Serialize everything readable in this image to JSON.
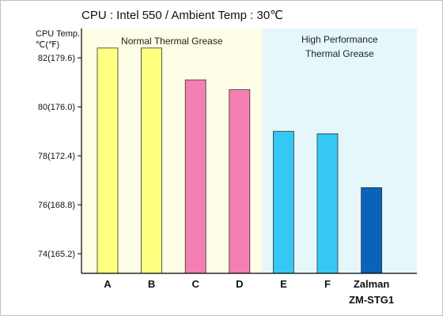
{
  "chart_data": {
    "type": "bar",
    "title": "CPU : Intel 550 / Ambient Temp : 30℃",
    "ylabel_line1": "CPU Temp.",
    "ylabel_line2": "℃(℉)",
    "ylim": [
      73.2,
      83.2
    ],
    "yticks": [
      {
        "value": 74,
        "label": "74(165.2)"
      },
      {
        "value": 76,
        "label": "76(168.8)"
      },
      {
        "value": 78,
        "label": "78(172.4)"
      },
      {
        "value": 80,
        "label": "80(176.0)"
      },
      {
        "value": 82,
        "label": "82(179.6)"
      }
    ],
    "grid": false,
    "categories": [
      {
        "label": "A",
        "label2": "",
        "value": 82.4,
        "color": "#ffff80",
        "group": 0
      },
      {
        "label": "B",
        "label2": "",
        "value": 82.4,
        "color": "#ffff80",
        "group": 0
      },
      {
        "label": "C",
        "label2": "",
        "value": 81.1,
        "color": "#f47fb4",
        "group": 0
      },
      {
        "label": "D",
        "label2": "",
        "value": 80.7,
        "color": "#f47fb4",
        "group": 0
      },
      {
        "label": "E",
        "label2": "",
        "value": 79.0,
        "color": "#35c8f5",
        "group": 1
      },
      {
        "label": "F",
        "label2": "",
        "value": 78.9,
        "color": "#35c8f5",
        "group": 1
      },
      {
        "label": "Zalman",
        "label2": "ZM-STG1",
        "value": 76.7,
        "color": "#0a63b8",
        "group": 1
      }
    ],
    "regions": [
      {
        "label": "Normal Thermal Grease",
        "label2": "",
        "color": "#fefde6"
      },
      {
        "label": "High Performance",
        "label2": "Thermal Grease",
        "color": "#e6f7fb"
      }
    ]
  }
}
